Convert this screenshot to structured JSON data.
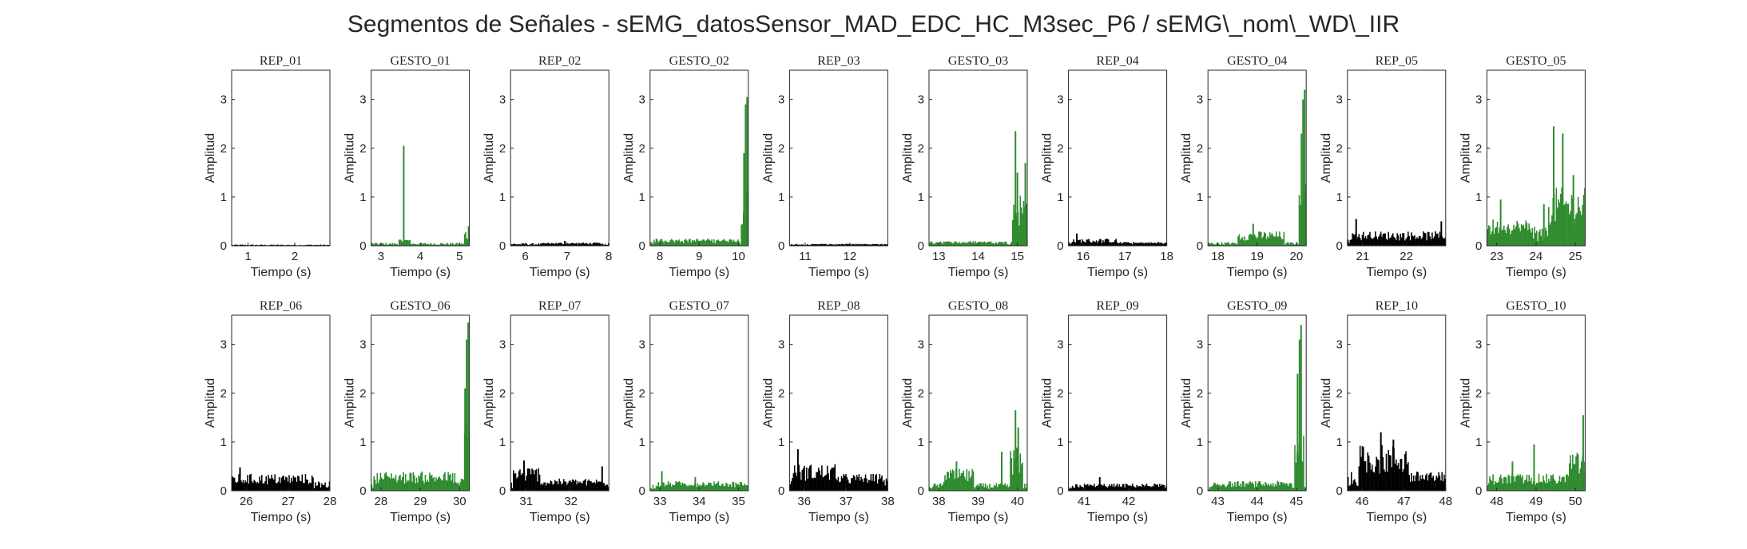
{
  "figure": {
    "title": "Segmentos de Señales - sEMG_datosSensor_MAD_EDC_HC_M3sec_P6 / sEMG\\_nom\\_WD\\_IIR"
  },
  "colors": {
    "rep": "#000000",
    "gesto": "#2e8b2e",
    "axis": "#262626",
    "background": "#ffffff"
  },
  "chart_data": {
    "type": "bar",
    "xlabel": "Tiempo (s)",
    "ylabel": "Amplitud",
    "ylim": [
      0,
      3.6
    ],
    "yticks": [
      0,
      1,
      2,
      3
    ],
    "grid": false,
    "legend": "none",
    "panels": [
      {
        "title": "REP_01",
        "kind": "rep",
        "xlim": [
          0.65,
          2.75
        ],
        "xticks": [
          1,
          2
        ],
        "baseline": 0.02,
        "bursts": [],
        "spikes": []
      },
      {
        "title": "GESTO_01",
        "kind": "gesto",
        "xlim": [
          2.75,
          5.25
        ],
        "xticks": [
          3,
          4,
          5
        ],
        "baseline": 0.05,
        "bursts": [
          [
            3.45,
            3.75,
            0.15
          ],
          [
            5.1,
            5.25,
            0.35
          ]
        ],
        "spikes": [
          [
            3.58,
            2.05
          ],
          [
            5.23,
            0.4
          ]
        ]
      },
      {
        "title": "REP_02",
        "kind": "rep",
        "xlim": [
          5.65,
          8.0
        ],
        "xticks": [
          6,
          7,
          8
        ],
        "baseline": 0.04,
        "bursts": [
          [
            6.4,
            7.8,
            0.07
          ]
        ],
        "spikes": [
          [
            6.95,
            0.1
          ]
        ]
      },
      {
        "title": "GESTO_02",
        "kind": "gesto",
        "xlim": [
          7.75,
          10.25
        ],
        "xticks": [
          8,
          9,
          10
        ],
        "baseline": 0.1,
        "bursts": [
          [
            7.9,
            10.0,
            0.15
          ],
          [
            10.05,
            10.25,
            1.2
          ]
        ],
        "spikes": [
          [
            10.18,
            2.9
          ],
          [
            10.22,
            3.05
          ],
          [
            10.14,
            1.9
          ]
        ]
      },
      {
        "title": "REP_03",
        "kind": "rep",
        "xlim": [
          10.65,
          12.85
        ],
        "xticks": [
          11,
          12
        ],
        "baseline": 0.03,
        "bursts": [
          [
            11.2,
            12.7,
            0.04
          ]
        ],
        "spikes": []
      },
      {
        "title": "GESTO_03",
        "kind": "gesto",
        "xlim": [
          12.75,
          15.25
        ],
        "xticks": [
          13,
          14,
          15
        ],
        "baseline": 0.07,
        "bursts": [
          [
            12.85,
            14.7,
            0.1
          ],
          [
            14.85,
            15.25,
            1.1
          ]
        ],
        "spikes": [
          [
            14.95,
            2.35
          ],
          [
            15.0,
            1.5
          ],
          [
            15.2,
            1.7
          ],
          [
            15.1,
            0.6
          ]
        ]
      },
      {
        "title": "REP_04",
        "kind": "rep",
        "xlim": [
          15.65,
          18.0
        ],
        "xticks": [
          16,
          17,
          18
        ],
        "baseline": 0.06,
        "bursts": [
          [
            15.7,
            16.8,
            0.15
          ],
          [
            16.8,
            17.9,
            0.08
          ]
        ],
        "spikes": [
          [
            15.85,
            0.25
          ]
        ]
      },
      {
        "title": "GESTO_04",
        "kind": "gesto",
        "xlim": [
          17.75,
          20.25
        ],
        "xticks": [
          18,
          19,
          20
        ],
        "baseline": 0.06,
        "bursts": [
          [
            18.5,
            19.7,
            0.3
          ],
          [
            20.05,
            20.25,
            1.5
          ]
        ],
        "spikes": [
          [
            18.9,
            0.45
          ],
          [
            20.17,
            3.0
          ],
          [
            20.21,
            3.2
          ],
          [
            20.13,
            2.3
          ]
        ]
      },
      {
        "title": "REP_05",
        "kind": "rep",
        "xlim": [
          20.65,
          22.9
        ],
        "xticks": [
          21,
          22
        ],
        "baseline": 0.15,
        "bursts": [
          [
            20.7,
            22.9,
            0.3
          ]
        ],
        "spikes": [
          [
            20.85,
            0.55
          ],
          [
            22.8,
            0.5
          ]
        ]
      },
      {
        "title": "GESTO_05",
        "kind": "gesto",
        "xlim": [
          22.75,
          25.25
        ],
        "xticks": [
          23,
          24,
          25
        ],
        "baseline": 0.3,
        "bursts": [
          [
            22.75,
            23.9,
            0.55
          ],
          [
            24.3,
            25.25,
            1.2
          ]
        ],
        "spikes": [
          [
            23.1,
            0.95
          ],
          [
            24.45,
            2.45
          ],
          [
            24.68,
            2.3
          ],
          [
            24.95,
            1.45
          ],
          [
            24.2,
            0.85
          ]
        ]
      },
      {
        "title": "REP_06",
        "kind": "rep",
        "xlim": [
          25.65,
          28.0
        ],
        "xticks": [
          26,
          27,
          28
        ],
        "baseline": 0.15,
        "bursts": [
          [
            25.65,
            27.6,
            0.35
          ]
        ],
        "spikes": [
          [
            25.85,
            0.48
          ]
        ]
      },
      {
        "title": "GESTO_06",
        "kind": "gesto",
        "xlim": [
          27.75,
          30.25
        ],
        "xticks": [
          28,
          29,
          30
        ],
        "baseline": 0.2,
        "bursts": [
          [
            27.8,
            29.9,
            0.4
          ],
          [
            30.1,
            30.25,
            1.5
          ]
        ],
        "spikes": [
          [
            30.18,
            3.1
          ],
          [
            30.22,
            3.45
          ],
          [
            30.14,
            2.1
          ]
        ]
      },
      {
        "title": "REP_07",
        "kind": "rep",
        "xlim": [
          30.65,
          32.85
        ],
        "xticks": [
          31,
          32
        ],
        "baseline": 0.15,
        "bursts": [
          [
            30.7,
            31.3,
            0.5
          ],
          [
            31.3,
            32.8,
            0.25
          ]
        ],
        "spikes": [
          [
            30.95,
            0.62
          ],
          [
            32.7,
            0.5
          ]
        ]
      },
      {
        "title": "GESTO_07",
        "kind": "gesto",
        "xlim": [
          32.75,
          35.25
        ],
        "xticks": [
          33,
          34,
          35
        ],
        "baseline": 0.1,
        "bursts": [
          [
            32.9,
            35.2,
            0.2
          ]
        ],
        "spikes": [
          [
            33.05,
            0.4
          ],
          [
            33.9,
            0.28
          ]
        ]
      },
      {
        "title": "REP_08",
        "kind": "rep",
        "xlim": [
          35.65,
          38.0
        ],
        "xticks": [
          36,
          37,
          38
        ],
        "baseline": 0.2,
        "bursts": [
          [
            35.7,
            36.8,
            0.55
          ],
          [
            36.8,
            37.9,
            0.35
          ]
        ],
        "spikes": [
          [
            35.85,
            0.85
          ]
        ]
      },
      {
        "title": "GESTO_08",
        "kind": "gesto",
        "xlim": [
          37.75,
          40.25
        ],
        "xticks": [
          38,
          39,
          40
        ],
        "baseline": 0.12,
        "bursts": [
          [
            38.1,
            38.9,
            0.45
          ],
          [
            39.8,
            40.15,
            0.9
          ]
        ],
        "spikes": [
          [
            38.45,
            0.6
          ],
          [
            39.95,
            1.65
          ],
          [
            40.02,
            1.3
          ],
          [
            39.6,
            0.8
          ]
        ]
      },
      {
        "title": "REP_09",
        "kind": "rep",
        "xlim": [
          40.65,
          42.85
        ],
        "xticks": [
          41,
          42
        ],
        "baseline": 0.08,
        "bursts": [
          [
            40.8,
            42.8,
            0.15
          ]
        ],
        "spikes": [
          [
            41.35,
            0.28
          ]
        ]
      },
      {
        "title": "GESTO_09",
        "kind": "gesto",
        "xlim": [
          42.75,
          45.25
        ],
        "xticks": [
          43,
          44,
          45
        ],
        "baseline": 0.07,
        "bursts": [
          [
            42.85,
            44.9,
            0.2
          ],
          [
            44.95,
            45.2,
            1.3
          ]
        ],
        "spikes": [
          [
            45.08,
            3.1
          ],
          [
            45.12,
            3.4
          ],
          [
            45.03,
            2.4
          ]
        ]
      },
      {
        "title": "REP_10",
        "kind": "rep",
        "xlim": [
          45.65,
          48.0
        ],
        "xticks": [
          46,
          47,
          48
        ],
        "baseline": 0.3,
        "bursts": [
          [
            45.9,
            47.1,
            0.95
          ],
          [
            47.1,
            47.7,
            0.4
          ]
        ],
        "spikes": [
          [
            46.45,
            1.2
          ],
          [
            46.75,
            1.05
          ]
        ]
      },
      {
        "title": "GESTO_10",
        "kind": "gesto",
        "xlim": [
          47.75,
          50.25
        ],
        "xticks": [
          48,
          49,
          50
        ],
        "baseline": 0.15,
        "bursts": [
          [
            47.8,
            49.8,
            0.35
          ],
          [
            49.8,
            50.25,
            0.8
          ]
        ],
        "spikes": [
          [
            48.4,
            0.6
          ],
          [
            48.95,
            0.95
          ],
          [
            50.2,
            1.55
          ]
        ]
      }
    ]
  }
}
